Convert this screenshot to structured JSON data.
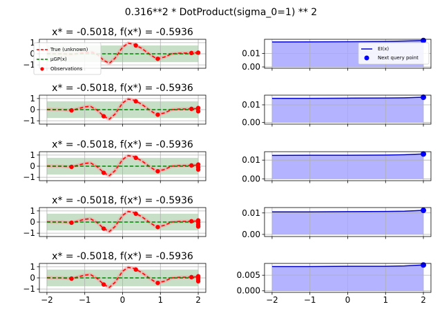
{
  "suptitle": "0.316**2 * DotProduct(sigma_0=1) ** 2",
  "colors": {
    "truth": "#ff0000",
    "gp_mean": "#008000",
    "gp_band": "#c6dfc6",
    "observation": "#ff0000",
    "ei_line": "#0000cd",
    "ei_fill": "#b3b3ff",
    "next_point": "#0000ff",
    "grid": "#b0b0b0"
  },
  "legend_left": {
    "placement": "upper-left",
    "entries": [
      {
        "label": "True (unknown)",
        "style": "dashed",
        "color": "#ff0000"
      },
      {
        "label": "μGP(x)",
        "style": "dashed",
        "color": "#008000"
      },
      {
        "label": "Observations",
        "style": "marker",
        "color": "#ff0000"
      }
    ]
  },
  "legend_right": {
    "placement": "upper-right",
    "entries": [
      {
        "label": "EI(x)",
        "style": "solid",
        "color": "#0000cd"
      },
      {
        "label": "Next query point",
        "style": "marker",
        "color": "#0000ff"
      }
    ]
  },
  "chart_data": [
    {
      "type": "line",
      "title": "x* = -0.5018, f(x*) = -0.5936",
      "xlim": [
        -2.2,
        2.2
      ],
      "ylim": [
        -1.3,
        1.3
      ],
      "xticks": [
        -2,
        -1,
        0,
        1,
        2
      ],
      "yticks": [
        -1,
        0,
        1
      ],
      "ytick_labels": [
        "−1",
        "0",
        "1"
      ],
      "grid": true,
      "band": [
        -0.75,
        0.75
      ],
      "mean": 0.0,
      "truth": [
        [
          -2,
          0.02
        ],
        [
          -1.8,
          0.0
        ],
        [
          -1.6,
          0.0
        ],
        [
          -1.35,
          -0.06
        ],
        [
          -1.0,
          0.1
        ],
        [
          -0.8,
          0.15
        ],
        [
          -0.65,
          -0.1
        ],
        [
          -0.5,
          -0.59
        ],
        [
          -0.35,
          -0.85
        ],
        [
          -0.2,
          -0.4
        ],
        [
          0.0,
          0.6
        ],
        [
          0.15,
          0.95
        ],
        [
          0.3,
          0.85
        ],
        [
          0.5,
          0.5
        ],
        [
          0.7,
          0.0
        ],
        [
          0.9,
          -0.45
        ],
        [
          1.1,
          -0.3
        ],
        [
          1.3,
          0.0
        ],
        [
          1.5,
          0.05
        ],
        [
          1.8,
          0.07
        ],
        [
          2.0,
          0.1
        ]
      ],
      "observations": [
        [
          1.82,
          0.07
        ],
        [
          2.0,
          0.1
        ],
        [
          0.35,
          0.75
        ],
        [
          0.93,
          -0.45
        ]
      ]
    },
    {
      "type": "line",
      "title": "x* = -0.5018, f(x*) = -0.5936",
      "xlim": [
        -2.2,
        2.2
      ],
      "ylim": [
        -1.3,
        1.3
      ],
      "xticks": [
        -2,
        -1,
        0,
        1,
        2
      ],
      "yticks": [
        -1,
        0,
        1
      ],
      "ytick_labels": [
        "−1",
        "0",
        "1"
      ],
      "grid": true,
      "band": [
        -0.75,
        0.75
      ],
      "mean": 0.0,
      "truth": [
        [
          -2,
          0.02
        ],
        [
          -1.8,
          0.0
        ],
        [
          -1.6,
          0.0
        ],
        [
          -1.35,
          -0.06
        ],
        [
          -1.0,
          0.25
        ],
        [
          -0.85,
          0.3
        ],
        [
          -0.65,
          -0.1
        ],
        [
          -0.5,
          -0.59
        ],
        [
          -0.35,
          -0.85
        ],
        [
          -0.2,
          -0.4
        ],
        [
          0.0,
          0.6
        ],
        [
          0.15,
          0.95
        ],
        [
          0.3,
          0.85
        ],
        [
          0.5,
          0.5
        ],
        [
          0.7,
          0.0
        ],
        [
          0.9,
          -0.45
        ],
        [
          1.1,
          -0.3
        ],
        [
          1.3,
          0.0
        ],
        [
          1.5,
          0.05
        ],
        [
          1.8,
          0.07
        ],
        [
          2.0,
          0.1
        ]
      ],
      "observations": [
        [
          -1.35,
          -0.06
        ],
        [
          -0.5,
          -0.59
        ],
        [
          0.35,
          0.75
        ],
        [
          0.93,
          -0.45
        ],
        [
          1.82,
          0.07
        ],
        [
          2.0,
          0.15
        ],
        [
          2.0,
          -0.15
        ]
      ]
    },
    {
      "type": "line",
      "title": "x* = -0.5018, f(x*) = -0.5936",
      "xlim": [
        -2.2,
        2.2
      ],
      "ylim": [
        -1.3,
        1.3
      ],
      "xticks": [
        -2,
        -1,
        0,
        1,
        2
      ],
      "yticks": [
        -1,
        0,
        1
      ],
      "ytick_labels": [
        "−1",
        "0",
        "1"
      ],
      "grid": true,
      "band": [
        -0.75,
        0.75
      ],
      "mean": 0.0,
      "truth": [
        [
          -2,
          0.02
        ],
        [
          -1.8,
          0.0
        ],
        [
          -1.6,
          0.0
        ],
        [
          -1.35,
          -0.06
        ],
        [
          -1.0,
          0.25
        ],
        [
          -0.85,
          0.3
        ],
        [
          -0.65,
          -0.1
        ],
        [
          -0.5,
          -0.59
        ],
        [
          -0.35,
          -0.85
        ],
        [
          -0.2,
          -0.4
        ],
        [
          0.0,
          0.6
        ],
        [
          0.15,
          0.95
        ],
        [
          0.3,
          0.85
        ],
        [
          0.5,
          0.5
        ],
        [
          0.7,
          0.0
        ],
        [
          0.9,
          -0.45
        ],
        [
          1.1,
          -0.3
        ],
        [
          1.3,
          0.0
        ],
        [
          1.5,
          0.05
        ],
        [
          1.8,
          0.07
        ],
        [
          2.0,
          0.1
        ]
      ],
      "observations": [
        [
          -1.35,
          -0.06
        ],
        [
          -0.5,
          -0.59
        ],
        [
          0.35,
          0.75
        ],
        [
          0.93,
          -0.45
        ],
        [
          1.82,
          0.07
        ],
        [
          2.0,
          0.15
        ],
        [
          2.0,
          -0.1
        ],
        [
          2.0,
          -0.3
        ]
      ]
    },
    {
      "type": "line",
      "title": "x* = -0.5018, f(x*) = -0.5936",
      "xlim": [
        -2.2,
        2.2
      ],
      "ylim": [
        -1.3,
        1.3
      ],
      "xticks": [
        -2,
        -1,
        0,
        1,
        2
      ],
      "yticks": [
        -1,
        0,
        1
      ],
      "ytick_labels": [
        "−1",
        "0",
        "1"
      ],
      "grid": true,
      "band": [
        -0.75,
        0.75
      ],
      "mean": 0.0,
      "truth": [
        [
          -2,
          0.02
        ],
        [
          -1.8,
          0.0
        ],
        [
          -1.6,
          0.0
        ],
        [
          -1.35,
          -0.06
        ],
        [
          -1.0,
          0.25
        ],
        [
          -0.85,
          0.3
        ],
        [
          -0.65,
          -0.1
        ],
        [
          -0.5,
          -0.59
        ],
        [
          -0.35,
          -0.85
        ],
        [
          -0.2,
          -0.4
        ],
        [
          0.0,
          0.6
        ],
        [
          0.15,
          0.95
        ],
        [
          0.3,
          0.85
        ],
        [
          0.5,
          0.5
        ],
        [
          0.7,
          0.0
        ],
        [
          0.9,
          -0.45
        ],
        [
          1.1,
          -0.3
        ],
        [
          1.3,
          0.0
        ],
        [
          1.5,
          0.05
        ],
        [
          1.8,
          0.07
        ],
        [
          2.0,
          0.1
        ]
      ],
      "observations": [
        [
          -1.35,
          -0.06
        ],
        [
          -0.5,
          -0.59
        ],
        [
          0.35,
          0.75
        ],
        [
          0.93,
          -0.45
        ],
        [
          1.82,
          0.07
        ],
        [
          2.0,
          0.15
        ],
        [
          2.0,
          -0.05
        ],
        [
          2.0,
          -0.25
        ],
        [
          2.0,
          -0.4
        ]
      ]
    },
    {
      "type": "line",
      "title": "x* = -0.5018, f(x*) = -0.5936",
      "xlim": [
        -2.2,
        2.2
      ],
      "ylim": [
        -1.3,
        1.3
      ],
      "xticks": [
        -2,
        -1,
        0,
        1,
        2
      ],
      "xtick_labels": [
        "−2",
        "−1",
        "0",
        "1",
        "2"
      ],
      "yticks": [
        -1,
        0,
        1
      ],
      "ytick_labels": [
        "−1",
        "0",
        "1"
      ],
      "grid": true,
      "band": [
        -0.75,
        0.75
      ],
      "mean": 0.0,
      "truth": [
        [
          -2,
          0.02
        ],
        [
          -1.8,
          0.0
        ],
        [
          -1.6,
          0.0
        ],
        [
          -1.35,
          -0.06
        ],
        [
          -1.0,
          0.25
        ],
        [
          -0.85,
          0.3
        ],
        [
          -0.65,
          -0.1
        ],
        [
          -0.5,
          -0.59
        ],
        [
          -0.35,
          -0.85
        ],
        [
          -0.2,
          -0.4
        ],
        [
          0.0,
          0.6
        ],
        [
          0.15,
          0.95
        ],
        [
          0.3,
          0.85
        ],
        [
          0.5,
          0.5
        ],
        [
          0.7,
          0.0
        ],
        [
          0.9,
          -0.45
        ],
        [
          1.1,
          -0.3
        ],
        [
          1.3,
          0.0
        ],
        [
          1.5,
          0.05
        ],
        [
          1.8,
          0.07
        ],
        [
          2.0,
          0.1
        ]
      ],
      "observations": [
        [
          -1.35,
          -0.06
        ],
        [
          -0.5,
          -0.59
        ],
        [
          0.35,
          0.75
        ],
        [
          0.93,
          -0.45
        ],
        [
          1.82,
          0.07
        ],
        [
          2.0,
          0.15
        ],
        [
          2.0,
          0.0
        ],
        [
          2.0,
          -0.15
        ],
        [
          2.0,
          -0.3
        ]
      ]
    },
    {
      "type": "area",
      "xlim": [
        -2.2,
        2.2
      ],
      "ylim": [
        -0.001,
        0.0205
      ],
      "xticks": [
        -2,
        -1,
        0,
        1,
        2
      ],
      "yticks": [
        0.0,
        0.01
      ],
      "ytick_labels": [
        "0.00",
        "0.01"
      ],
      "grid": true,
      "ei": [
        [
          -2,
          0.0185
        ],
        [
          -1,
          0.0186
        ],
        [
          0,
          0.0187
        ],
        [
          1,
          0.0189
        ],
        [
          1.5,
          0.0192
        ],
        [
          2,
          0.0196
        ]
      ],
      "next_point": [
        2.0,
        0.0196
      ]
    },
    {
      "type": "area",
      "xlim": [
        -2.2,
        2.2
      ],
      "ylim": [
        -0.001,
        0.0155
      ],
      "xticks": [
        -2,
        -1,
        0,
        1,
        2
      ],
      "yticks": [
        0.0,
        0.01
      ],
      "ytick_labels": [
        "0.00",
        "0.01"
      ],
      "grid": true,
      "ei": [
        [
          -2,
          0.0137
        ],
        [
          -1,
          0.0137
        ],
        [
          0,
          0.0138
        ],
        [
          1,
          0.0139
        ],
        [
          1.5,
          0.014
        ],
        [
          2,
          0.0143
        ]
      ],
      "next_point": [
        2.0,
        0.0143
      ]
    },
    {
      "type": "area",
      "xlim": [
        -2.2,
        2.2
      ],
      "ylim": [
        -0.001,
        0.0145
      ],
      "xticks": [
        -2,
        -1,
        0,
        1,
        2
      ],
      "yticks": [
        0.0,
        0.01
      ],
      "ytick_labels": [
        "0.00",
        "0.01"
      ],
      "grid": true,
      "ei": [
        [
          -2,
          0.0125
        ],
        [
          -1,
          0.0126
        ],
        [
          0,
          0.0126
        ],
        [
          1,
          0.0127
        ],
        [
          1.5,
          0.0129
        ],
        [
          2,
          0.0133
        ]
      ],
      "next_point": [
        2.0,
        0.0133
      ]
    },
    {
      "type": "area",
      "xlim": [
        -2.2,
        2.2
      ],
      "ylim": [
        -0.001,
        0.0125
      ],
      "xticks": [
        -2,
        -1,
        0,
        1,
        2
      ],
      "yticks": [
        0.0,
        0.01
      ],
      "ytick_labels": [
        "0.00",
        "0.01"
      ],
      "grid": true,
      "ei": [
        [
          -2,
          0.0105
        ],
        [
          -1,
          0.0105
        ],
        [
          0,
          0.0106
        ],
        [
          1,
          0.0107
        ],
        [
          1.5,
          0.0108
        ],
        [
          2,
          0.0112
        ]
      ],
      "next_point": [
        2.0,
        0.0112
      ]
    },
    {
      "type": "area",
      "xlim": [
        -2.2,
        2.2
      ],
      "ylim": [
        -0.0005,
        0.0088
      ],
      "xticks": [
        -2,
        -1,
        0,
        1,
        2
      ],
      "xtick_labels": [
        "−2",
        "−1",
        "0",
        "1",
        "2"
      ],
      "yticks": [
        0.0,
        0.005
      ],
      "ytick_labels": [
        "0.000",
        "0.005"
      ],
      "grid": true,
      "ei": [
        [
          -2,
          0.0078
        ],
        [
          -1,
          0.0078
        ],
        [
          0,
          0.0079
        ],
        [
          1,
          0.0079
        ],
        [
          1.5,
          0.008
        ],
        [
          2,
          0.0083
        ]
      ],
      "next_point": [
        2.0,
        0.0083
      ]
    }
  ]
}
